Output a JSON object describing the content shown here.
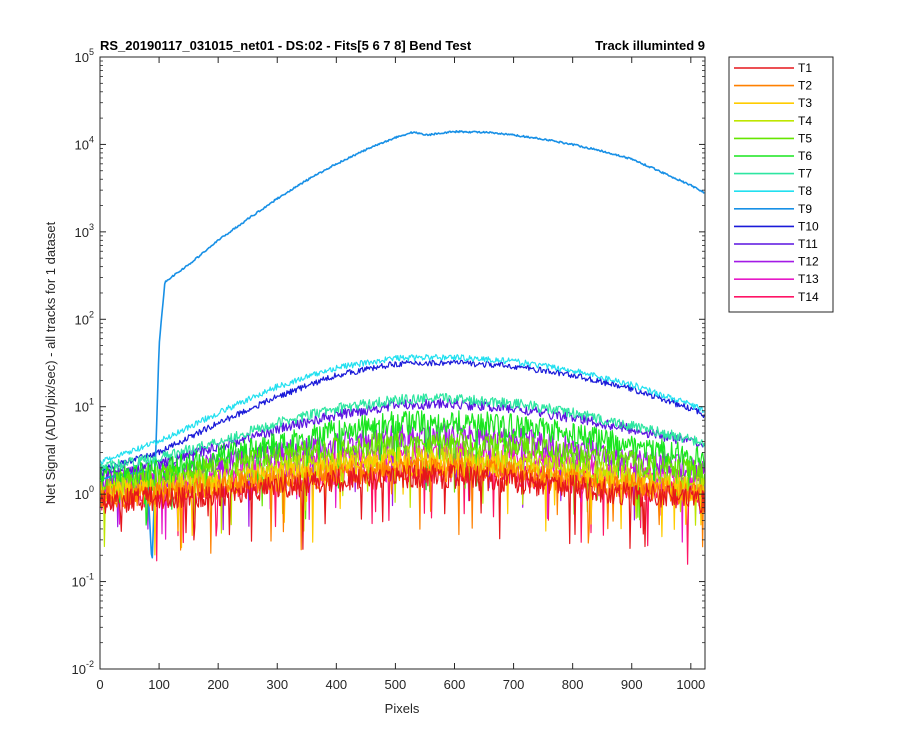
{
  "chart_data": {
    "type": "line",
    "title_left": "RS_20190117_031015_net01 - DS:02 - Fits[5  6  7  8]   Bend Test",
    "title_right": "Track illuminted 9",
    "xlabel": "Pixels",
    "ylabel": "Net Signal (ADU/pix/sec) - all tracks for 1 dataset",
    "xlim": [
      0,
      1024
    ],
    "ylim": [
      0.01,
      100000
    ],
    "yscale": "log",
    "grid": false,
    "legend_position": "outside-right",
    "x_ticks": [
      "0",
      "100",
      "200",
      "300",
      "400",
      "500",
      "600",
      "700",
      "800",
      "900",
      "1000"
    ],
    "y_ticks": [
      {
        "base": "10",
        "exp": "-2"
      },
      {
        "base": "10",
        "exp": "-1"
      },
      {
        "base": "10",
        "exp": "0"
      },
      {
        "base": "10",
        "exp": "1"
      },
      {
        "base": "10",
        "exp": "2"
      },
      {
        "base": "10",
        "exp": "3"
      },
      {
        "base": "10",
        "exp": "4"
      },
      {
        "base": "10",
        "exp": "5"
      }
    ],
    "series": [
      {
        "name": "T1",
        "color": "#e6161b",
        "x": [
          0,
          100,
          200,
          300,
          400,
          500,
          600,
          700,
          800,
          900,
          1000,
          1024
        ],
        "y": [
          0.8,
          0.9,
          1.0,
          1.2,
          1.4,
          1.6,
          1.6,
          1.4,
          1.2,
          1.0,
          0.9,
          0.8
        ]
      },
      {
        "name": "T2",
        "color": "#ff8000",
        "x": [
          0,
          100,
          200,
          300,
          400,
          500,
          600,
          700,
          800,
          900,
          1000,
          1024
        ],
        "y": [
          0.9,
          1.0,
          1.2,
          1.4,
          1.7,
          1.9,
          1.9,
          1.7,
          1.4,
          1.2,
          1.0,
          0.9
        ]
      },
      {
        "name": "T3",
        "color": "#ffcc00",
        "x": [
          0,
          100,
          200,
          300,
          400,
          500,
          600,
          700,
          800,
          900,
          1000,
          1024
        ],
        "y": [
          1.0,
          1.1,
          1.3,
          1.6,
          2.0,
          2.2,
          2.2,
          2.0,
          1.6,
          1.3,
          1.1,
          1.0
        ]
      },
      {
        "name": "T4",
        "color": "#bfe600",
        "x": [
          0,
          100,
          200,
          300,
          400,
          500,
          600,
          700,
          800,
          900,
          1000,
          1024
        ],
        "y": [
          1.1,
          1.2,
          1.5,
          1.9,
          2.3,
          2.6,
          2.6,
          2.3,
          1.9,
          1.5,
          1.2,
          1.1
        ]
      },
      {
        "name": "T5",
        "color": "#66e600",
        "x": [
          0,
          100,
          200,
          300,
          400,
          500,
          600,
          700,
          800,
          900,
          1000,
          1024
        ],
        "y": [
          1.3,
          1.5,
          2.0,
          2.6,
          3.3,
          3.8,
          3.9,
          3.5,
          2.9,
          2.3,
          1.8,
          1.6
        ]
      },
      {
        "name": "T6",
        "color": "#19e61e",
        "x": [
          0,
          100,
          200,
          300,
          400,
          500,
          600,
          700,
          800,
          900,
          1000,
          1024
        ],
        "y": [
          1.5,
          1.8,
          2.6,
          3.7,
          5.2,
          6.5,
          6.8,
          6.0,
          4.8,
          3.6,
          2.7,
          2.4
        ]
      },
      {
        "name": "T7",
        "color": "#2ee6a1",
        "x": [
          0,
          100,
          200,
          300,
          400,
          500,
          600,
          700,
          800,
          900,
          1000,
          1024
        ],
        "y": [
          2.0,
          2.6,
          4.0,
          6.5,
          9.5,
          12.0,
          12.5,
          11.0,
          8.5,
          6.0,
          4.2,
          3.7
        ]
      },
      {
        "name": "T8",
        "color": "#22e0f0",
        "x": [
          0,
          100,
          200,
          300,
          400,
          500,
          600,
          700,
          800,
          900,
          1000,
          1024
        ],
        "y": [
          2.3,
          4.0,
          8.5,
          17.0,
          28.0,
          36.0,
          37.0,
          33.0,
          26.0,
          18.0,
          10.5,
          9.0
        ]
      },
      {
        "name": "T9",
        "color": "#1890e6",
        "x": [
          0,
          80,
          88,
          95,
          100,
          110,
          150,
          200,
          250,
          300,
          350,
          400,
          450,
          500,
          530,
          555,
          575,
          600,
          650,
          700,
          750,
          800,
          850,
          900,
          940,
          1000,
          1024
        ],
        "y": [
          1.5,
          1.8,
          0.15,
          4.0,
          50,
          270,
          420,
          800,
          1400,
          2400,
          3900,
          6000,
          8700,
          12000,
          13800,
          12800,
          13500,
          14000,
          13800,
          12800,
          11500,
          10000,
          8400,
          6800,
          5200,
          3400,
          2800
        ]
      },
      {
        "name": "T10",
        "color": "#1a1ad9",
        "x": [
          0,
          100,
          200,
          300,
          400,
          500,
          600,
          700,
          800,
          900,
          1000,
          1024
        ],
        "y": [
          1.9,
          3.0,
          6.5,
          13.0,
          23.0,
          31.0,
          32.0,
          29.0,
          23.0,
          16.0,
          9.5,
          8.0
        ]
      },
      {
        "name": "T11",
        "color": "#5a14e0",
        "x": [
          0,
          100,
          200,
          300,
          400,
          500,
          600,
          700,
          800,
          900,
          1000,
          1024
        ],
        "y": [
          1.7,
          2.2,
          3.5,
          5.5,
          8.0,
          10.5,
          10.8,
          9.5,
          7.5,
          5.5,
          4.0,
          3.6
        ]
      },
      {
        "name": "T12",
        "color": "#a31ae6",
        "x": [
          0,
          100,
          200,
          300,
          400,
          500,
          600,
          700,
          800,
          900,
          1000,
          1024
        ],
        "y": [
          1.4,
          1.6,
          2.2,
          2.9,
          3.8,
          4.6,
          4.7,
          4.2,
          3.4,
          2.6,
          2.0,
          1.8
        ]
      },
      {
        "name": "T13",
        "color": "#e619c8",
        "x": [
          0,
          100,
          200,
          300,
          400,
          500,
          600,
          700,
          800,
          900,
          1000,
          1024
        ],
        "y": [
          1.2,
          1.3,
          1.7,
          2.1,
          2.6,
          3.0,
          3.0,
          2.7,
          2.2,
          1.7,
          1.4,
          1.3
        ]
      },
      {
        "name": "T14",
        "color": "#ff1466",
        "x": [
          0,
          100,
          200,
          300,
          400,
          500,
          600,
          700,
          800,
          900,
          1000,
          1024
        ],
        "y": [
          0.9,
          1.0,
          1.2,
          1.4,
          1.7,
          1.9,
          1.9,
          1.7,
          1.4,
          1.2,
          1.0,
          0.9
        ]
      }
    ]
  }
}
